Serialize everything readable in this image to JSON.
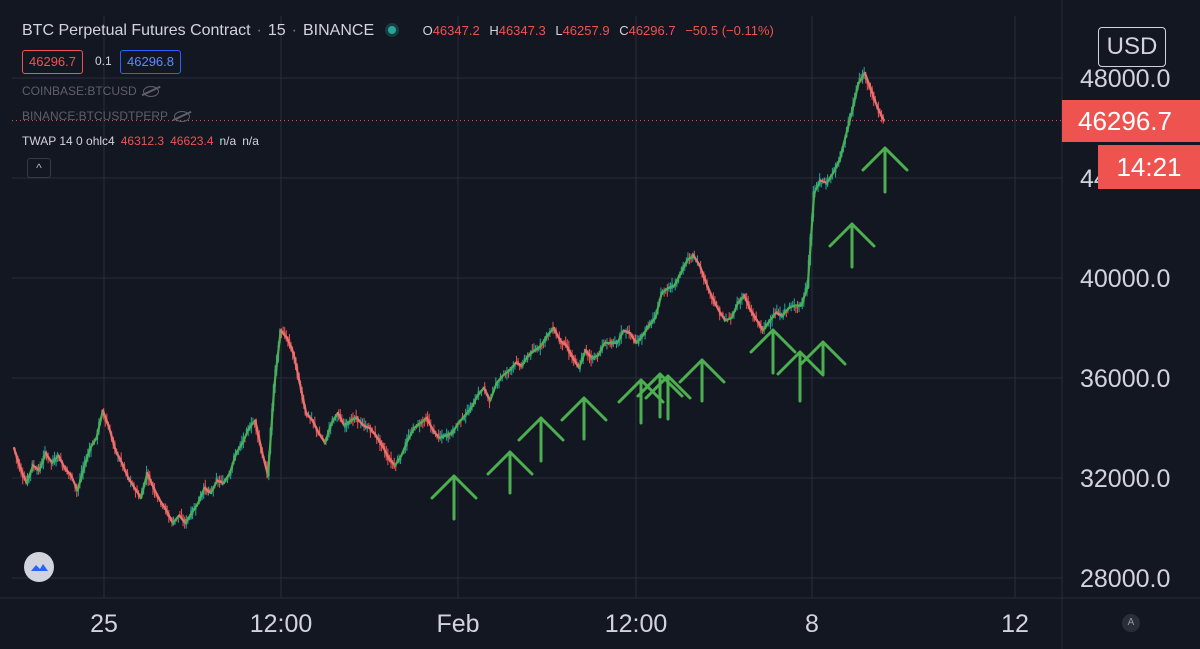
{
  "header": {
    "symbol": "BTC Perpetual Futures Contract",
    "interval": "15",
    "exchange": "BINANCE",
    "ohlc": {
      "o_label": "O",
      "o": "46347.2",
      "h_label": "H",
      "h": "46347.3",
      "l_label": "L",
      "l": "46257.9",
      "c_label": "C",
      "c": "46296.7",
      "change": "−50.5 (−0.11%)"
    },
    "bid": "46296.7",
    "spread": "0.1",
    "ask": "46296.8"
  },
  "legend": {
    "compare1": "COINBASE:BTCUSD",
    "compare2": "BINANCE:BTCUSDTPERP",
    "indicator_name": "TWAP 14 0 ohlc4",
    "indicator_v1": "46312.3",
    "indicator_v2": "46623.4",
    "indicator_v3": "n/a",
    "indicator_v4": "n/a",
    "collapse_glyph": "^"
  },
  "price_axis": {
    "currency": "USD",
    "last_price": "46296.7",
    "countdown": "14:21",
    "ticks": [
      "48000.0",
      "44000.0",
      "40000.0",
      "36000.0",
      "32000.0",
      "28000.0"
    ]
  },
  "time_axis": {
    "ticks": [
      "25",
      "12:00",
      "Feb",
      "12:00",
      "8",
      "12"
    ]
  },
  "corner_badge": "A",
  "colors": {
    "background": "#131722",
    "up": "#26a69a",
    "down": "#ef5350",
    "twap_up": "#4caf50",
    "twap_down": "#e57373",
    "arrow": "#4caf50",
    "grid": "#2a2e39"
  },
  "chart_data": {
    "type": "line",
    "title": "",
    "xlabel": "",
    "ylabel": "",
    "ylim": [
      27600,
      48900
    ],
    "y_ticks": [
      28000,
      32000,
      36000,
      40000,
      44000,
      48000
    ],
    "x_ticks": [
      "25",
      "12:00",
      "Feb",
      "12:00",
      "8",
      "12"
    ],
    "grid": true,
    "last_price": 46296.7,
    "series": [
      {
        "values": [
          33200,
          32400,
          31800,
          32500,
          32300,
          33000,
          32600,
          32900,
          32400,
          32100,
          31500,
          32400,
          33200,
          33600,
          34700,
          34000,
          33100,
          32600,
          32000,
          31600,
          31200,
          32200,
          31600,
          31100,
          30700,
          30200,
          30500,
          30200,
          30600,
          31000,
          31600,
          31400,
          31900,
          31800,
          32200,
          33000,
          33400,
          34000,
          34300,
          33100,
          32100,
          35700,
          37900,
          37600,
          37000,
          35800,
          34600,
          34300,
          33800,
          33400,
          34200,
          34600,
          34100,
          34300,
          34400,
          34100,
          34000,
          33700,
          33300,
          32800,
          32500,
          32900,
          33500,
          34000,
          34200,
          34400,
          33900,
          33600,
          33700,
          33800,
          34200,
          34500,
          34800,
          35300,
          35600,
          35100,
          35800,
          36100,
          36300,
          36600,
          36500,
          36900,
          37100,
          37300,
          37700,
          38000,
          37500,
          37300,
          36800,
          36400,
          37100,
          36800,
          36900,
          37400,
          37400,
          37400,
          37900,
          37800,
          37400,
          37700,
          38100,
          38400,
          39400,
          39600,
          39700,
          40200,
          40700,
          40900,
          40500,
          39800,
          39200,
          38700,
          38300,
          38400,
          39000,
          39300,
          38700,
          38300,
          37900,
          38300,
          38600,
          38500,
          38800,
          38900,
          38900,
          39700,
          43400,
          43900,
          43800,
          44200,
          44700,
          45700,
          46700,
          47800,
          48200,
          47500,
          46800,
          46300
        ]
      }
    ],
    "annotations": [
      {
        "type": "up-arrow",
        "count": 15
      }
    ]
  }
}
